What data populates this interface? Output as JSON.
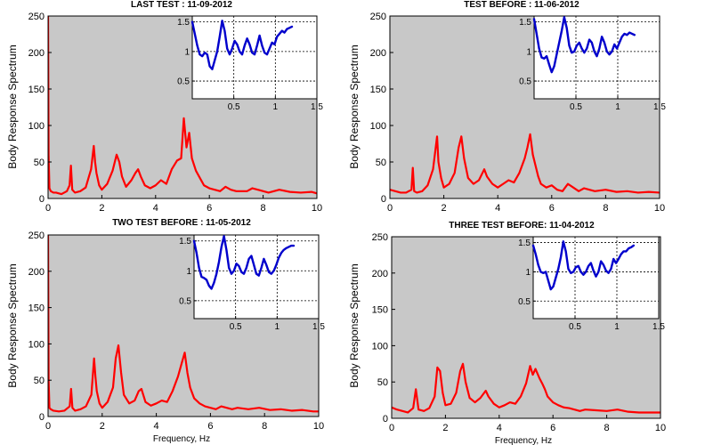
{
  "chart_data": [
    {
      "type": "line",
      "title": "LAST TEST : 11-09-2012",
      "xlabel": "",
      "ylabel": "Body Response Spectrum",
      "xlim": [
        0,
        10
      ],
      "ylim": [
        0,
        250
      ],
      "xticks": [
        0,
        2,
        4,
        6,
        8,
        10
      ],
      "yticks": [
        0,
        50,
        100,
        150,
        200,
        250
      ],
      "grid": false,
      "background": "#c8c8c8",
      "series": [
        {
          "color": "#ff0000",
          "x": [
            0.0,
            0.02,
            0.05,
            0.1,
            0.2,
            0.3,
            0.4,
            0.5,
            0.6,
            0.7,
            0.8,
            0.85,
            0.9,
            1.0,
            1.2,
            1.4,
            1.6,
            1.7,
            1.75,
            1.8,
            1.9,
            2.0,
            2.2,
            2.4,
            2.55,
            2.65,
            2.75,
            2.9,
            3.1,
            3.25,
            3.35,
            3.45,
            3.6,
            3.8,
            4.0,
            4.2,
            4.4,
            4.6,
            4.8,
            4.95,
            5.05,
            5.15,
            5.25,
            5.35,
            5.5,
            5.65,
            5.8,
            6.0,
            6.2,
            6.4,
            6.6,
            6.8,
            7.0,
            7.4,
            7.6,
            7.9,
            8.2,
            8.6,
            9.0,
            9.4,
            9.8,
            10.0
          ],
          "y": [
            250,
            60,
            14,
            10,
            8,
            8,
            7,
            6,
            8,
            10,
            18,
            45,
            12,
            8,
            10,
            15,
            40,
            72,
            50,
            35,
            18,
            12,
            20,
            38,
            60,
            50,
            30,
            16,
            25,
            35,
            40,
            30,
            18,
            14,
            18,
            25,
            20,
            40,
            52,
            55,
            110,
            70,
            90,
            55,
            38,
            28,
            18,
            14,
            12,
            10,
            16,
            12,
            10,
            10,
            14,
            11,
            8,
            12,
            9,
            8,
            9,
            7
          ]
        }
      ],
      "inset": {
        "xlim": [
          0,
          1.5
        ],
        "ylim": [
          0.2,
          1.6
        ],
        "xticks": [
          0.5,
          1,
          1.5
        ],
        "yticks": [
          0.5,
          1,
          1.5
        ],
        "grid": true,
        "series": [
          {
            "color": "#0000cc",
            "x": [
              0.0,
              0.03,
              0.06,
              0.09,
              0.12,
              0.15,
              0.18,
              0.21,
              0.24,
              0.27,
              0.3,
              0.33,
              0.36,
              0.39,
              0.42,
              0.45,
              0.48,
              0.51,
              0.54,
              0.57,
              0.6,
              0.63,
              0.66,
              0.69,
              0.72,
              0.75,
              0.78,
              0.81,
              0.84,
              0.87,
              0.9,
              0.93,
              0.96,
              0.99,
              1.02,
              1.05,
              1.08,
              1.11,
              1.14,
              1.17,
              1.2
            ],
            "y": [
              1.5,
              1.3,
              1.1,
              0.95,
              0.92,
              0.98,
              0.95,
              0.75,
              0.7,
              0.85,
              1.0,
              1.25,
              1.52,
              1.35,
              1.05,
              0.95,
              1.05,
              1.18,
              1.12,
              1.0,
              0.95,
              1.1,
              1.22,
              1.12,
              0.98,
              0.95,
              1.1,
              1.27,
              1.1,
              0.98,
              0.95,
              1.05,
              1.15,
              1.12,
              1.25,
              1.3,
              1.35,
              1.32,
              1.38,
              1.4,
              1.42
            ]
          }
        ]
      }
    },
    {
      "type": "line",
      "title": "TEST BEFORE : 11-06-2012",
      "xlabel": "",
      "ylabel": "Body Response Spectrum",
      "xlim": [
        0,
        10
      ],
      "ylim": [
        0,
        250
      ],
      "xticks": [
        0,
        2,
        4,
        6,
        8,
        10
      ],
      "yticks": [
        0,
        50,
        100,
        150,
        200,
        250
      ],
      "grid": false,
      "background": "#c8c8c8",
      "series": [
        {
          "color": "#ff0000",
          "x": [
            0.0,
            0.2,
            0.4,
            0.6,
            0.8,
            0.85,
            0.9,
            1.0,
            1.2,
            1.4,
            1.6,
            1.75,
            1.8,
            1.9,
            2.0,
            2.2,
            2.4,
            2.55,
            2.65,
            2.75,
            2.9,
            3.1,
            3.3,
            3.5,
            3.6,
            3.8,
            4.0,
            4.2,
            4.4,
            4.6,
            4.8,
            5.0,
            5.1,
            5.2,
            5.3,
            5.4,
            5.5,
            5.6,
            5.8,
            6.0,
            6.2,
            6.4,
            6.6,
            6.8,
            7.0,
            7.2,
            7.6,
            8.0,
            8.4,
            8.8,
            9.2,
            9.6,
            10.0
          ],
          "y": [
            12,
            10,
            8,
            8,
            12,
            42,
            10,
            8,
            10,
            18,
            40,
            85,
            50,
            28,
            15,
            20,
            35,
            70,
            85,
            55,
            28,
            20,
            25,
            40,
            30,
            20,
            15,
            20,
            25,
            22,
            35,
            55,
            70,
            88,
            60,
            45,
            30,
            20,
            15,
            18,
            12,
            10,
            20,
            15,
            10,
            14,
            10,
            12,
            9,
            10,
            8,
            9,
            8
          ]
        }
      ],
      "inset": {
        "xlim": [
          0,
          1.5
        ],
        "ylim": [
          0.2,
          1.6
        ],
        "xticks": [
          0.5,
          1,
          1.5
        ],
        "yticks": [
          0.5,
          1,
          1.5
        ],
        "grid": true,
        "series": [
          {
            "color": "#0000cc",
            "x": [
              0.0,
              0.03,
              0.06,
              0.09,
              0.12,
              0.15,
              0.18,
              0.21,
              0.24,
              0.27,
              0.3,
              0.33,
              0.36,
              0.39,
              0.42,
              0.45,
              0.48,
              0.51,
              0.54,
              0.57,
              0.6,
              0.63,
              0.66,
              0.69,
              0.72,
              0.75,
              0.78,
              0.81,
              0.84,
              0.87,
              0.9,
              0.93,
              0.96,
              0.99,
              1.02,
              1.05,
              1.08,
              1.11,
              1.14,
              1.17,
              1.2
            ],
            "y": [
              1.55,
              1.3,
              1.05,
              0.9,
              0.88,
              0.92,
              0.78,
              0.65,
              0.75,
              0.95,
              1.15,
              1.35,
              1.58,
              1.4,
              1.1,
              0.98,
              1.0,
              1.1,
              1.15,
              1.05,
              0.98,
              1.05,
              1.2,
              1.15,
              1.0,
              0.92,
              1.05,
              1.25,
              1.15,
              1.0,
              0.95,
              1.0,
              1.12,
              1.05,
              1.15,
              1.25,
              1.3,
              1.28,
              1.32,
              1.3,
              1.28
            ]
          }
        ]
      }
    },
    {
      "type": "line",
      "title": "TWO TEST BEFORE : 11-05-2012",
      "xlabel": "",
      "ylabel": "Body Response Spectrum",
      "xlim": [
        0,
        10
      ],
      "ylim": [
        0,
        250
      ],
      "xticks": [
        0,
        2,
        4,
        6,
        8,
        10
      ],
      "yticks": [
        0,
        50,
        100,
        150,
        200,
        250
      ],
      "grid": false,
      "background": "#c8c8c8",
      "series": [
        {
          "color": "#ff0000",
          "x": [
            0.0,
            0.02,
            0.05,
            0.1,
            0.2,
            0.4,
            0.6,
            0.8,
            0.85,
            0.9,
            1.0,
            1.2,
            1.4,
            1.6,
            1.7,
            1.75,
            1.8,
            1.9,
            2.0,
            2.2,
            2.4,
            2.5,
            2.6,
            2.7,
            2.8,
            3.0,
            3.2,
            3.35,
            3.45,
            3.6,
            3.8,
            4.0,
            4.2,
            4.4,
            4.6,
            4.8,
            4.95,
            5.05,
            5.15,
            5.25,
            5.4,
            5.6,
            5.8,
            6.0,
            6.2,
            6.4,
            6.6,
            6.8,
            7.0,
            7.4,
            7.8,
            8.2,
            8.6,
            9.0,
            9.4,
            9.8,
            10.0
          ],
          "y": [
            250,
            50,
            12,
            10,
            8,
            7,
            8,
            14,
            38,
            12,
            8,
            10,
            14,
            30,
            80,
            55,
            35,
            18,
            12,
            20,
            40,
            80,
            98,
            60,
            30,
            18,
            22,
            35,
            38,
            20,
            15,
            18,
            22,
            20,
            35,
            55,
            75,
            88,
            60,
            40,
            25,
            18,
            14,
            12,
            10,
            14,
            12,
            10,
            12,
            10,
            12,
            9,
            10,
            8,
            9,
            7,
            7
          ]
        }
      ],
      "inset": {
        "xlim": [
          0,
          1.5
        ],
        "ylim": [
          0.2,
          1.6
        ],
        "xticks": [
          0.5,
          1,
          1.5
        ],
        "yticks": [
          0.5,
          1,
          1.5
        ],
        "grid": true,
        "series": [
          {
            "color": "#0000cc",
            "x": [
              0.0,
              0.03,
              0.06,
              0.09,
              0.12,
              0.15,
              0.18,
              0.21,
              0.24,
              0.27,
              0.3,
              0.33,
              0.36,
              0.39,
              0.42,
              0.45,
              0.48,
              0.51,
              0.54,
              0.57,
              0.6,
              0.63,
              0.66,
              0.69,
              0.72,
              0.75,
              0.78,
              0.81,
              0.84,
              0.87,
              0.9,
              0.93,
              0.96,
              0.99,
              1.02,
              1.05,
              1.08,
              1.11,
              1.14,
              1.17,
              1.2
            ],
            "y": [
              1.5,
              1.3,
              1.05,
              0.9,
              0.88,
              0.85,
              0.75,
              0.7,
              0.8,
              0.95,
              1.15,
              1.4,
              1.58,
              1.35,
              1.05,
              0.95,
              1.0,
              1.12,
              1.08,
              0.98,
              0.95,
              1.05,
              1.2,
              1.25,
              1.1,
              0.95,
              0.92,
              1.05,
              1.2,
              1.1,
              0.98,
              0.95,
              1.0,
              1.1,
              1.22,
              1.3,
              1.35,
              1.38,
              1.4,
              1.42,
              1.42
            ]
          }
        ]
      }
    },
    {
      "type": "line",
      "title": "THREE TEST BEFORE:   11-04-2012",
      "xlabel": "",
      "ylabel": "Body Response Spectrum",
      "xlim": [
        0,
        10
      ],
      "ylim": [
        0,
        250
      ],
      "xticks": [
        0,
        2,
        4,
        6,
        8,
        10
      ],
      "yticks": [
        0,
        50,
        100,
        150,
        200,
        250
      ],
      "grid": false,
      "background": "#c8c8c8",
      "series": [
        {
          "color": "#ff0000",
          "x": [
            0.0,
            0.2,
            0.4,
            0.6,
            0.8,
            0.9,
            1.0,
            1.2,
            1.4,
            1.6,
            1.7,
            1.8,
            1.9,
            2.0,
            2.2,
            2.4,
            2.55,
            2.65,
            2.75,
            2.9,
            3.1,
            3.3,
            3.5,
            3.6,
            3.8,
            4.0,
            4.2,
            4.4,
            4.6,
            4.8,
            5.0,
            5.15,
            5.25,
            5.35,
            5.5,
            5.6,
            5.7,
            5.8,
            6.0,
            6.2,
            6.4,
            6.6,
            6.8,
            7.0,
            7.2,
            7.6,
            8.0,
            8.4,
            8.8,
            9.2,
            9.6,
            10.0
          ],
          "y": [
            15,
            12,
            10,
            8,
            14,
            40,
            12,
            10,
            14,
            30,
            70,
            65,
            35,
            18,
            20,
            35,
            65,
            75,
            50,
            28,
            22,
            28,
            38,
            30,
            20,
            15,
            18,
            22,
            20,
            30,
            48,
            72,
            60,
            68,
            55,
            48,
            40,
            30,
            22,
            18,
            15,
            14,
            12,
            10,
            12,
            11,
            10,
            12,
            9,
            8,
            8,
            8
          ]
        }
      ],
      "inset": {
        "xlim": [
          0,
          1.5
        ],
        "ylim": [
          0.2,
          1.6
        ],
        "xticks": [
          0.5,
          1,
          1.5
        ],
        "yticks": [
          0.5,
          1,
          1.5
        ],
        "grid": true,
        "series": [
          {
            "color": "#0000cc",
            "x": [
              0.0,
              0.03,
              0.06,
              0.09,
              0.12,
              0.15,
              0.18,
              0.21,
              0.24,
              0.27,
              0.3,
              0.33,
              0.36,
              0.39,
              0.42,
              0.45,
              0.48,
              0.51,
              0.54,
              0.57,
              0.6,
              0.63,
              0.66,
              0.69,
              0.72,
              0.75,
              0.78,
              0.81,
              0.84,
              0.87,
              0.9,
              0.93,
              0.96,
              0.99,
              1.02,
              1.05,
              1.08,
              1.11,
              1.14,
              1.17,
              1.2
            ],
            "y": [
              1.45,
              1.3,
              1.12,
              1.0,
              0.98,
              1.0,
              0.85,
              0.7,
              0.75,
              0.9,
              1.05,
              1.25,
              1.52,
              1.35,
              1.05,
              0.98,
              1.0,
              1.08,
              1.1,
              1.0,
              0.95,
              1.0,
              1.1,
              1.15,
              1.02,
              0.92,
              1.0,
              1.18,
              1.12,
              1.02,
              0.98,
              1.05,
              1.22,
              1.15,
              1.22,
              1.3,
              1.35,
              1.35,
              1.4,
              1.42,
              1.45
            ]
          }
        ]
      }
    }
  ],
  "figure": {
    "xlabel_bottom": "Frequency, Hz"
  }
}
